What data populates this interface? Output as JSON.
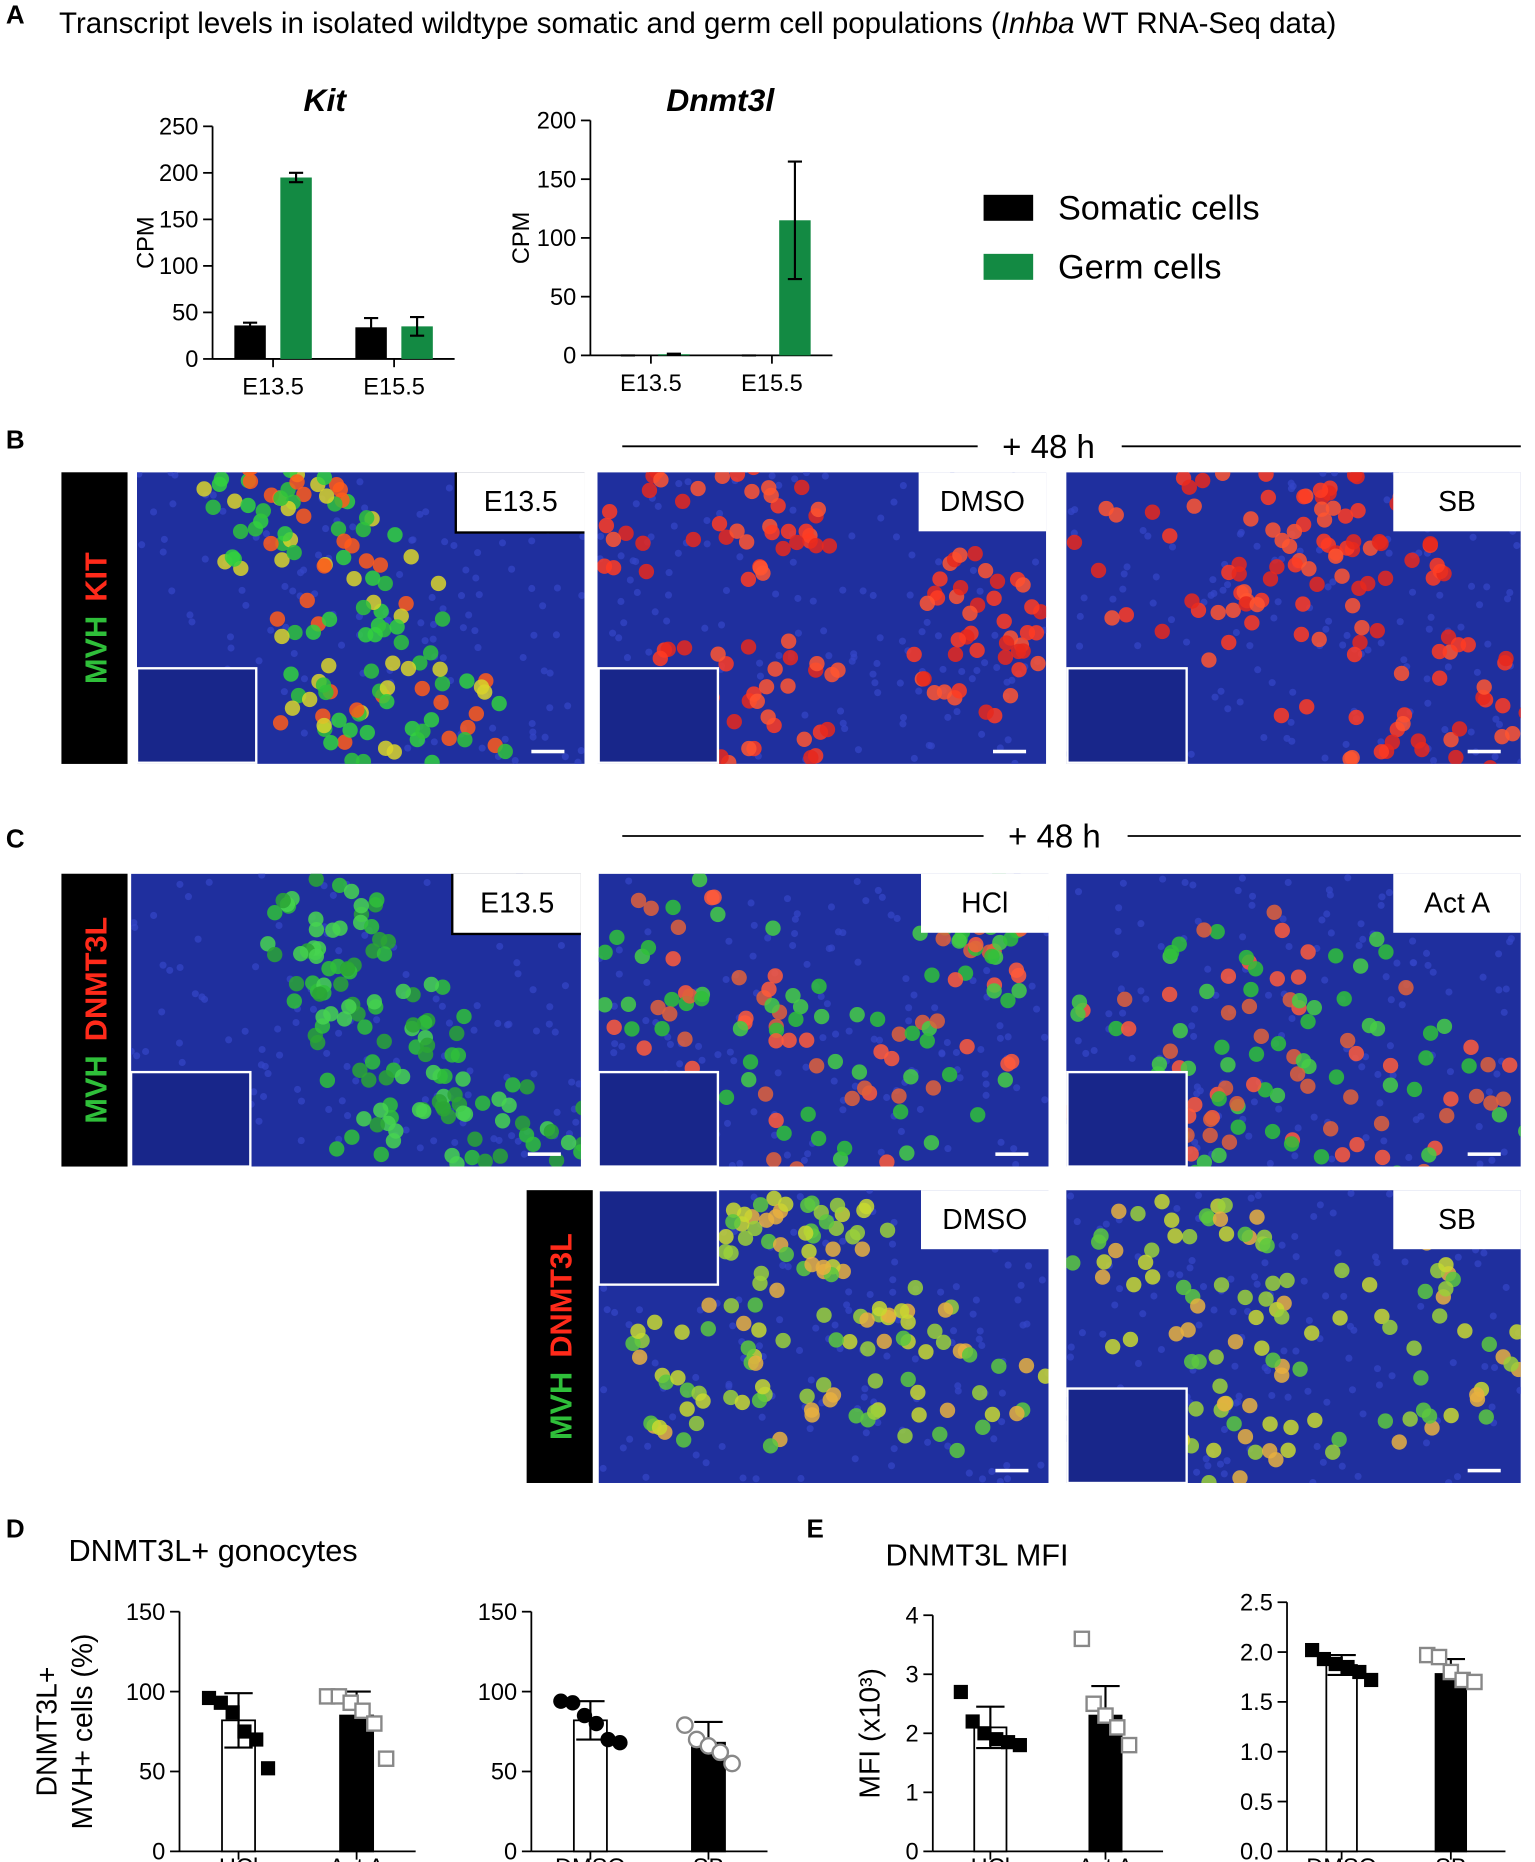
{
  "panel_labels": [
    "A",
    "B",
    "C",
    "D",
    "E"
  ],
  "header": [
    "Transcript levels in isolated wildtype somatic and germ cell populations (",
    "Inhba",
    " WT RNA-Seq data)"
  ],
  "micrographs": [
    {
      "time": "+ 48 h",
      "stains": [
        [
          "MVH",
          "KIT"
        ]
      ],
      "images": [
        "E13.5",
        "DMSO",
        "SB"
      ]
    },
    {
      "time": "+ 48 h",
      "stains": [
        [
          "MVH",
          "DNMT3L"
        ],
        [
          "MVH",
          "DNMT3L"
        ]
      ],
      "images": [
        "E13.5",
        "HCl",
        "Act A",
        "DMSO",
        "SB"
      ]
    }
  ],
  "chart_data": [
    {
      "type": "bar",
      "title": "Kit",
      "ylabel": [
        "CPM"
      ],
      "categories": [
        "E13.5",
        "E15.5"
      ],
      "series": [
        {
          "name": "Somatic cells",
          "color": "#000000",
          "values": [
            36,
            34
          ],
          "errors": [
            3,
            10
          ]
        },
        {
          "name": "Germ cells",
          "color": "#138a43",
          "values": [
            195,
            35
          ],
          "errors": [
            5,
            10
          ]
        }
      ],
      "ylim": [
        0,
        250
      ],
      "yticks": [
        0,
        50,
        100,
        150,
        200,
        250
      ],
      "legend": "right"
    },
    {
      "type": "bar",
      "title": "Dnmt3l",
      "ylabel": [
        "CPM"
      ],
      "categories": [
        "E13.5",
        "E15.5"
      ],
      "series": [
        {
          "name": "Somatic cells",
          "color": "#000000",
          "values": [
            0,
            0
          ],
          "errors": [
            0,
            0
          ]
        },
        {
          "name": "Germ cells",
          "color": "#138a43",
          "values": [
            1,
            115
          ],
          "errors": [
            0.5,
            50
          ]
        }
      ],
      "ylim": [
        0,
        200
      ],
      "yticks": [
        0,
        50,
        100,
        150,
        200
      ]
    },
    {
      "type": "dotbar",
      "title": "DNMT3L+ gonocytes",
      "ylabel": [
        "DNMT3L+",
        "MVH+ cells (%)"
      ],
      "categories": [
        "HCl",
        "Act A"
      ],
      "values": [
        82,
        85
      ],
      "errors": [
        17,
        15
      ],
      "points": [
        [
          96,
          93,
          87,
          75,
          70,
          52
        ],
        [
          97,
          97,
          93,
          88,
          80,
          58
        ]
      ],
      "bar_colors": [
        "#ffffff",
        "#000000"
      ],
      "point_styles": [
        "square-filled",
        "square-open"
      ],
      "point_colors": [
        "#000000",
        "#888888"
      ],
      "ylim": [
        0,
        150
      ],
      "yticks": [
        0,
        50,
        100,
        150
      ]
    },
    {
      "type": "dotbar",
      "categories": [
        "DMSO",
        "SB"
      ],
      "values": [
        82,
        68
      ],
      "errors": [
        12,
        13
      ],
      "points": [
        [
          94,
          93,
          85,
          80,
          70,
          68
        ],
        [
          79,
          70,
          66,
          62,
          55
        ]
      ],
      "bar_colors": [
        "#ffffff",
        "#000000"
      ],
      "point_styles": [
        "circle-filled",
        "circle-open"
      ],
      "point_colors": [
        "#000000",
        "#888888"
      ],
      "ylim": [
        0,
        150
      ],
      "yticks": [
        0,
        50,
        100,
        150
      ]
    },
    {
      "type": "dotbar",
      "title": "DNMT3L MFI",
      "ylabel": [
        "MFI (x10³)"
      ],
      "categories": [
        "HCl",
        "Act A"
      ],
      "values": [
        2.1,
        2.3
      ],
      "errors": [
        0.35,
        0.5
      ],
      "points": [
        [
          2.7,
          2.2,
          2.0,
          1.9,
          1.85,
          1.8
        ],
        [
          3.6,
          2.5,
          2.3,
          2.1,
          1.8
        ]
      ],
      "bar_colors": [
        "#ffffff",
        "#000000"
      ],
      "point_styles": [
        "square-filled",
        "square-open"
      ],
      "point_colors": [
        "#000000",
        "#888888"
      ],
      "ylim": [
        0,
        4
      ],
      "yticks": [
        0,
        1,
        2,
        3,
        4
      ]
    },
    {
      "type": "dotbar",
      "categories": [
        "DMSO",
        "SB"
      ],
      "values": [
        1.87,
        1.78
      ],
      "errors": [
        0.1,
        0.15
      ],
      "points": [
        [
          2.02,
          1.93,
          1.88,
          1.85,
          1.8,
          1.72
        ],
        [
          1.97,
          1.95,
          1.8,
          1.72,
          1.7
        ]
      ],
      "bar_colors": [
        "#ffffff",
        "#000000"
      ],
      "point_styles": [
        "square-filled",
        "square-open"
      ],
      "point_colors": [
        "#000000",
        "#888888"
      ],
      "ylim": [
        0,
        2.5
      ],
      "yticks": [
        {
          "value": 0,
          "label": "0.0"
        },
        0.5,
        {
          "value": 1,
          "label": "1.0"
        },
        1.5,
        {
          "value": 2,
          "label": "2.0"
        },
        2.5
      ]
    }
  ]
}
